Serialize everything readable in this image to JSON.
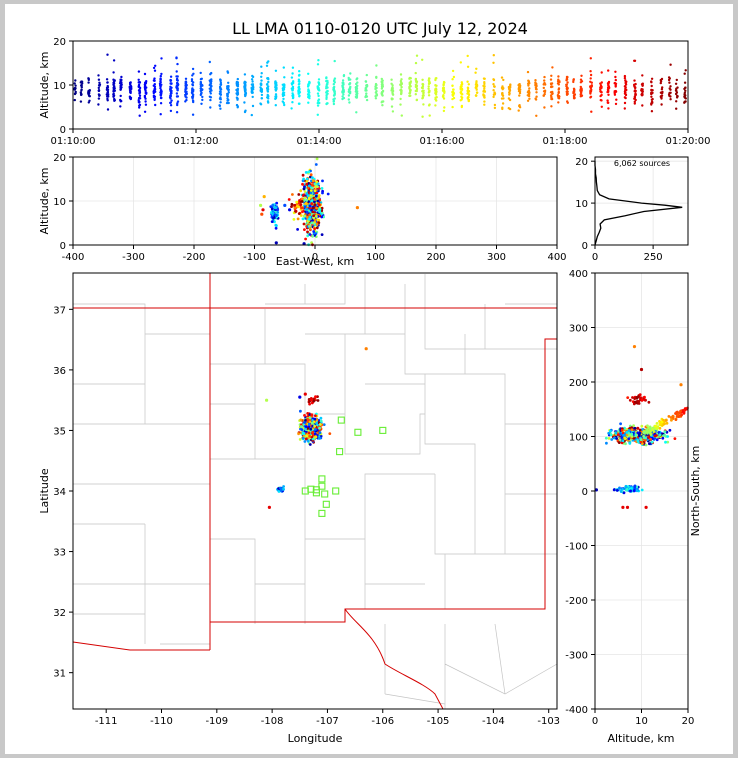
{
  "chart_data": [
    {
      "id": "time-height",
      "type": "scatter",
      "title": "LL LMA 0110-0120 UTC July 12, 2024",
      "xlabel": "",
      "ylabel": "Altitude, km",
      "xlim": [
        0,
        600
      ],
      "ylim": [
        0,
        20
      ],
      "x_ticks": [
        0,
        120,
        240,
        360,
        480,
        600
      ],
      "x_tick_labels": [
        "01:10:00",
        "01:12:00",
        "01:14:00",
        "01:16:00",
        "01:18:00",
        "01:20:00"
      ],
      "y_ticks": [
        0,
        10,
        20
      ],
      "color_encoding": "time (blue = early, dark red = late)",
      "density_profile": [
        {
          "t": 0,
          "n": 40
        },
        {
          "t": 60,
          "n": 130
        },
        {
          "t": 120,
          "n": 140
        },
        {
          "t": 180,
          "n": 130
        },
        {
          "t": 240,
          "n": 120
        },
        {
          "t": 300,
          "n": 110
        },
        {
          "t": 360,
          "n": 100
        },
        {
          "t": 420,
          "n": 90
        },
        {
          "t": 480,
          "n": 80
        },
        {
          "t": 560,
          "n": 110
        },
        {
          "t": 600,
          "n": 60
        }
      ]
    },
    {
      "id": "east-west-altitude",
      "type": "scatter",
      "xlabel": "East-West, km",
      "ylabel": "Altitude, km",
      "xlim": [
        -400,
        400
      ],
      "ylim": [
        0,
        20
      ],
      "x_ticks": [
        -400,
        -300,
        -200,
        -100,
        0,
        100,
        200,
        300,
        400
      ],
      "y_ticks": [
        0,
        10,
        20
      ],
      "clusters": [
        {
          "x": -5,
          "y": 9,
          "sx": 7,
          "sy": 3.2,
          "n": 600,
          "c0": 0.0,
          "c1": 1.0
        },
        {
          "x": -67,
          "y": 7.5,
          "sx": 2.5,
          "sy": 1.2,
          "n": 80,
          "c0": 0.05,
          "c1": 0.45
        },
        {
          "x": -28,
          "y": 9,
          "sx": 5,
          "sy": 1.5,
          "n": 40,
          "c0": 0.6,
          "c1": 1.0
        }
      ],
      "outliers": [
        {
          "x": -90,
          "y": 9,
          "c": 0.55
        },
        {
          "x": -88,
          "y": 7,
          "c": 0.8
        },
        {
          "x": -84,
          "y": 11,
          "c": 0.7
        },
        {
          "x": -86,
          "y": 8,
          "c": 0.9
        },
        {
          "x": 70,
          "y": 8.5,
          "c": 0.75
        },
        {
          "x": -42,
          "y": 8,
          "c": 0.1
        },
        {
          "x": -50,
          "y": 9,
          "c": 0.2
        },
        {
          "x": -18,
          "y": 0.3,
          "c": 0.05
        },
        {
          "x": -64,
          "y": 0.5,
          "c": 0.05
        }
      ]
    },
    {
      "id": "altitude-histogram",
      "type": "line",
      "annotation": "6,062 sources",
      "xlim": [
        0,
        400
      ],
      "ylim": [
        0,
        21
      ],
      "x_ticks": [
        0,
        250
      ],
      "y_ticks": [
        0,
        10,
        20
      ],
      "profile": [
        [
          0,
          0
        ],
        [
          5,
          1
        ],
        [
          10,
          2
        ],
        [
          18,
          3
        ],
        [
          25,
          4
        ],
        [
          22,
          5
        ],
        [
          40,
          6
        ],
        [
          130,
          7
        ],
        [
          210,
          8
        ],
        [
          375,
          9
        ],
        [
          300,
          9.5
        ],
        [
          200,
          10
        ],
        [
          60,
          11
        ],
        [
          20,
          12
        ],
        [
          10,
          13
        ],
        [
          8,
          14
        ],
        [
          6,
          15
        ],
        [
          5,
          16
        ],
        [
          2,
          17
        ],
        [
          2,
          18
        ],
        [
          0,
          19
        ],
        [
          0,
          20
        ]
      ]
    },
    {
      "id": "plan-view-map",
      "type": "scatter",
      "xlabel": "Longitude",
      "ylabel": "Latitude",
      "xlim": [
        -111.6,
        -102.85
      ],
      "ylim": [
        30.4,
        37.6
      ],
      "x_ticks": [
        -111,
        -110,
        -109,
        -108,
        -107,
        -106,
        -105,
        -104,
        -103
      ],
      "y_ticks": [
        31,
        32,
        33,
        34,
        35,
        36,
        37
      ],
      "clusters": [
        {
          "x": -107.3,
          "y": 35.03,
          "sx": 0.08,
          "sy": 0.09,
          "n": 600,
          "c0": 0.0,
          "c1": 1.0
        },
        {
          "x": -107.25,
          "y": 35.5,
          "sx": 0.06,
          "sy": 0.03,
          "n": 20,
          "c0": 0.85,
          "c1": 1.0
        },
        {
          "x": -107.85,
          "y": 34.03,
          "sx": 0.03,
          "sy": 0.02,
          "n": 30,
          "c0": 0.05,
          "c1": 0.45
        }
      ],
      "outliers": [
        {
          "x": -106.3,
          "y": 36.35,
          "c": 0.75
        },
        {
          "x": -107.4,
          "y": 35.6,
          "c": 0.9
        },
        {
          "x": -108.1,
          "y": 35.5,
          "c": 0.55
        },
        {
          "x": -108.05,
          "y": 33.73,
          "c": 0.9
        },
        {
          "x": -107.5,
          "y": 35.55,
          "c": 0.1
        }
      ],
      "stations": [
        [
          -106.75,
          35.17
        ],
        [
          -106.45,
          34.97
        ],
        [
          -106.0,
          35.0
        ],
        [
          -106.78,
          34.65
        ],
        [
          -107.1,
          34.2
        ],
        [
          -107.1,
          34.08
        ],
        [
          -107.2,
          34.02
        ],
        [
          -107.3,
          34.03
        ],
        [
          -107.4,
          34.0
        ],
        [
          -107.05,
          33.95
        ],
        [
          -107.02,
          33.78
        ],
        [
          -107.1,
          33.63
        ],
        [
          -106.85,
          34.0
        ],
        [
          -107.2,
          33.97
        ]
      ]
    },
    {
      "id": "altitude-north-south",
      "type": "scatter",
      "xlabel": "Altitude, km",
      "ylabel": "North-South, km",
      "xlim": [
        0,
        20
      ],
      "ylim": [
        -400,
        400
      ],
      "x_ticks": [
        0,
        10,
        20
      ],
      "y_ticks": [
        -400,
        -300,
        -200,
        -100,
        0,
        100,
        200,
        300,
        400
      ],
      "clusters": [
        {
          "x": 9,
          "y": 102,
          "sx": 2.8,
          "sy": 7,
          "n": 500,
          "c0": 0.0,
          "c1": 1.0
        },
        {
          "x": 9,
          "y": 167,
          "sx": 1.2,
          "sy": 4,
          "n": 30,
          "c0": 0.85,
          "c1": 1.0
        },
        {
          "x": 7,
          "y": 3,
          "sx": 1.2,
          "sy": 3,
          "n": 70,
          "c0": 0.05,
          "c1": 0.45
        }
      ],
      "outliers": [
        {
          "x": 8.5,
          "y": 265,
          "c": 0.75
        },
        {
          "x": 10,
          "y": 223,
          "c": 0.95
        },
        {
          "x": 18.5,
          "y": 195,
          "c": 0.75
        },
        {
          "x": 6,
          "y": -30,
          "c": 0.9
        },
        {
          "x": 7,
          "y": -30,
          "c": 0.9
        },
        {
          "x": 11,
          "y": -30,
          "c": 0.9
        },
        {
          "x": 0.3,
          "y": 2,
          "c": 0.05
        }
      ],
      "trend": {
        "from": [
          11,
          108
        ],
        "to": [
          20,
          150
        ],
        "n": 90,
        "c0": 0.5,
        "c1": 0.9
      }
    }
  ]
}
